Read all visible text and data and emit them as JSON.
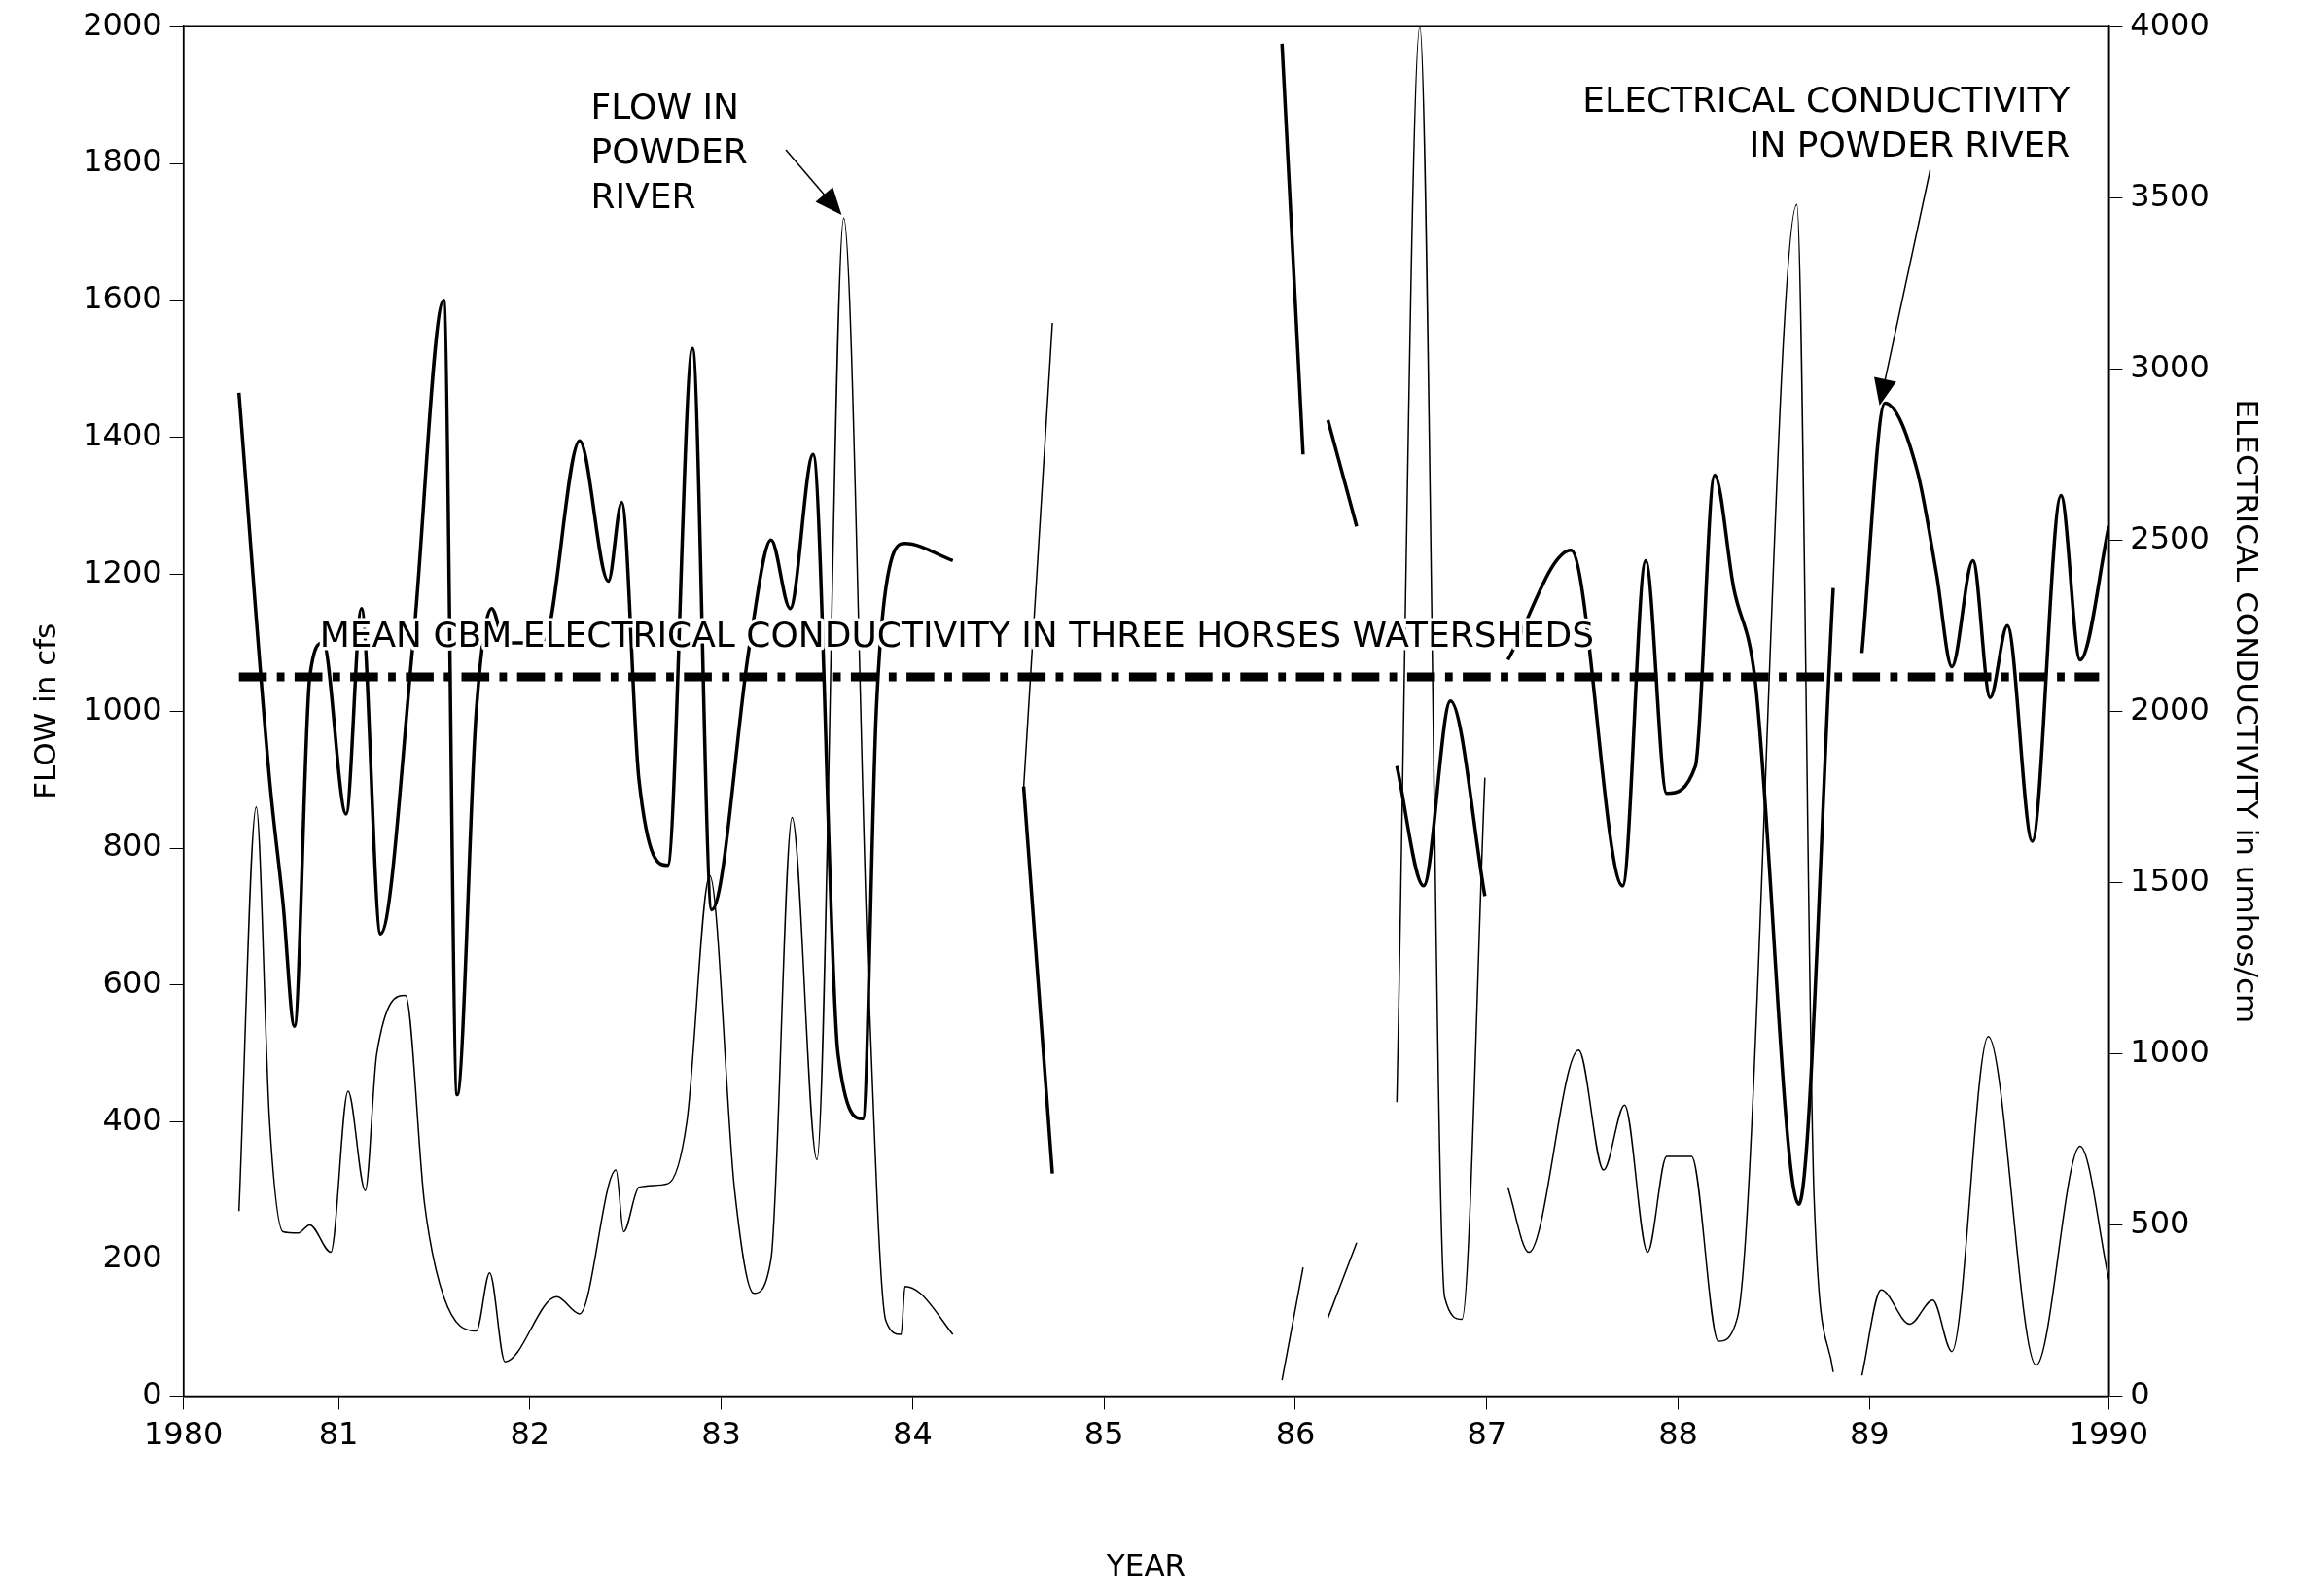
{
  "chart_data": {
    "type": "line",
    "xlabel": "YEAR",
    "ylabel": "FLOW in cfs",
    "y2label": "ELECTRICAL CONDUCTIVITY in umhos/cm",
    "xlim": [
      1980.19,
      1990.25
    ],
    "xticks": [
      {
        "value": 1980.19,
        "label": "1980"
      },
      {
        "value": 1981,
        "label": "81"
      },
      {
        "value": 1982,
        "label": "82"
      },
      {
        "value": 1983,
        "label": "83"
      },
      {
        "value": 1984,
        "label": "84"
      },
      {
        "value": 1985,
        "label": "85"
      },
      {
        "value": 1986,
        "label": "86"
      },
      {
        "value": 1987,
        "label": "87"
      },
      {
        "value": 1988,
        "label": "88"
      },
      {
        "value": 1989,
        "label": "89"
      },
      {
        "value": 1990.25,
        "label": "1990"
      }
    ],
    "ylim": [
      0,
      2000
    ],
    "yticks": [
      0,
      200,
      400,
      600,
      800,
      1000,
      1200,
      1400,
      1600,
      1800,
      2000
    ],
    "y2lim": [
      0,
      4000
    ],
    "y2ticks": [
      0,
      500,
      1000,
      1500,
      2000,
      2500,
      3000,
      3500,
      4000
    ],
    "grid": false,
    "legend": false,
    "series": [
      {
        "color": "#000000",
        "x": [
          1980.48,
          1980.57,
          1980.64,
          1980.71,
          1980.79,
          1980.85,
          1980.96,
          1981.05,
          1981.14,
          1981.2,
          1981.35,
          1981.45,
          1981.55,
          1981.72,
          1981.79,
          1981.87,
          1982.14,
          1982.26,
          1982.45,
          1982.49,
          1982.57,
          1982.72,
          1982.82,
          1982.94,
          1983.07,
          1983.17,
          1983.26,
          1983.37,
          1983.5,
          1983.64,
          1983.77,
          1983.86,
          1983.94,
          1983.96,
          1984.04,
          1984.21,
          1984.4,
          1984.58,
          1984.73,
          1985.3,
          1985.93,
          1986.04,
          1986.1,
          1986.17,
          1986.32,
          1986.45,
          1986.53,
          1986.65,
          1986.78,
          1986.87,
          1986.99,
          1987.05,
          1987.11,
          1987.22,
          1987.48,
          1987.61,
          1987.72,
          1987.84,
          1987.94,
          1988.07,
          1988.21,
          1988.31,
          1988.62,
          1988.71,
          1988.81,
          1988.9,
          1988.96,
          1989.06,
          1989.21,
          1989.33,
          1989.43,
          1989.62,
          1989.87,
          1990.1,
          1990.25
        ],
        "values": [
          270,
          860,
          400,
          240,
          238,
          250,
          210,
          445,
          300,
          500,
          585,
          280,
          145,
          95,
          180,
          50,
          145,
          120,
          330,
          240,
          305,
          310,
          400,
          760,
          300,
          150,
          200,
          845,
          345,
          1720,
          600,
          110,
          90,
          160,
          150,
          90,
          null,
          888,
          1567,
          null,
          23,
          188,
          null,
          114,
          224,
          null,
          429,
          2000,
          144,
          112,
          903,
          null,
          305,
          210,
          505,
          330,
          425,
          210,
          350,
          350,
          80,
          115,
          1740,
          290,
          35,
          null,
          30,
          155,
          105,
          140,
          65,
          525,
          45,
          365,
          170
        ]
      },
      {
        "color": "#000000",
        "axis": "y2",
        "x": [
          1980.48,
          1980.64,
          1980.71,
          1980.77,
          1980.85,
          1980.92,
          1981.04,
          1981.12,
          1981.22,
          1981.39,
          1981.55,
          1981.62,
          1981.72,
          1981.8,
          1981.87,
          1982.07,
          1982.26,
          1982.41,
          1982.48,
          1982.57,
          1982.72,
          1982.85,
          1982.95,
          1983.15,
          1983.26,
          1983.36,
          1983.48,
          1983.61,
          1983.74,
          1983.81,
          1983.86,
          1983.96,
          1984.21,
          1984.4,
          1984.58,
          1984.73,
          1985.3,
          1985.93,
          1986.04,
          1986.1,
          1986.17,
          1986.32,
          1986.45,
          1986.53,
          1986.67,
          1986.81,
          1986.99,
          1987.05,
          1987.11,
          1987.44,
          1987.71,
          1987.83,
          1987.94,
          1988.09,
          1988.19,
          1988.29,
          1988.4,
          1988.63,
          1988.81,
          1988.9,
          1988.96,
          1989.08,
          1989.25,
          1989.35,
          1989.43,
          1989.54,
          1989.63,
          1989.72,
          1989.85,
          1990.0,
          1990.1,
          1990.25
        ],
        "values": [
          2930,
          1800,
          1440,
          1080,
          2100,
          2200,
          1700,
          2300,
          1350,
          2200,
          3200,
          880,
          2000,
          2300,
          2200,
          2200,
          2790,
          2380,
          2610,
          1800,
          1550,
          3060,
          1420,
          2200,
          2500,
          2300,
          2750,
          1000,
          810,
          2000,
          2360,
          2490,
          2440,
          null,
          1780,
          650,
          null,
          3950,
          2750,
          null,
          2850,
          2540,
          null,
          1840,
          1490,
          2030,
          1460,
          null,
          2150,
          2470,
          1490,
          2440,
          1760,
          1840,
          2690,
          2360,
          2100,
          560,
          2360,
          null,
          2170,
          2900,
          2700,
          2400,
          2130,
          2440,
          2040,
          2250,
          1620,
          2630,
          2150,
          2540
        ]
      }
    ],
    "ref_lines": [
      {
        "axis": "y2",
        "value": 2100,
        "label": "MEAN CBM ELECTRICAL CONDUCTIVITY IN THREE HORSES WATERSHEDS",
        "color": "#000000",
        "line_style": "dashed"
      }
    ],
    "annotations": [
      {
        "text": "FLOW IN\nPOWDER\nRIVER",
        "x": 1983.64,
        "y": 1720
      },
      "ELECTRICAL CONDUCTIVITY\nIN POWDER RIVER"
    ]
  }
}
